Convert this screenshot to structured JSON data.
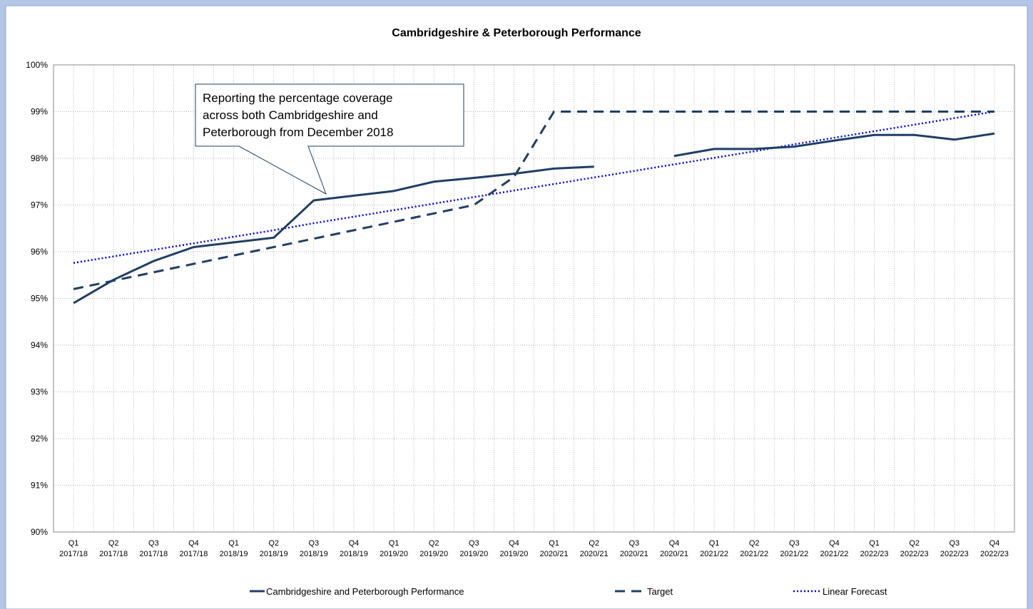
{
  "chart_data": {
    "type": "line",
    "title": "Cambridgeshire & Peterborough Performance",
    "categories": [
      [
        "Q1",
        "2017/18"
      ],
      [
        "Q2",
        "2017/18"
      ],
      [
        "Q3",
        "2017/18"
      ],
      [
        "Q4",
        "2017/18"
      ],
      [
        "Q1",
        "2018/19"
      ],
      [
        "Q2",
        "2018/19"
      ],
      [
        "Q3",
        "2018/19"
      ],
      [
        "Q4",
        "2018/19"
      ],
      [
        "Q1",
        "2019/20"
      ],
      [
        "Q2",
        "2019/20"
      ],
      [
        "Q3",
        "2019/20"
      ],
      [
        "Q4",
        "2019/20"
      ],
      [
        "Q1",
        "2020/21"
      ],
      [
        "Q2",
        "2020/21"
      ],
      [
        "Q3",
        "2020/21"
      ],
      [
        "Q4",
        "2020/21"
      ],
      [
        "Q1",
        "2021/22"
      ],
      [
        "Q2",
        "2021/22"
      ],
      [
        "Q3",
        "2021/22"
      ],
      [
        "Q4",
        "2021/22"
      ],
      [
        "Q1",
        "2022/23"
      ],
      [
        "Q2",
        "2022/23"
      ],
      [
        "Q3",
        "2022/23"
      ],
      [
        "Q4",
        "2022/23"
      ]
    ],
    "series": [
      {
        "name": "Cambridgeshire and Peterborough Performance",
        "color": "#1f3f66",
        "style": "solid",
        "values": [
          94.9,
          95.4,
          95.8,
          96.1,
          96.2,
          96.3,
          97.1,
          97.2,
          97.3,
          97.5,
          97.58,
          97.67,
          97.78,
          97.82,
          null,
          98.05,
          98.2,
          98.2,
          98.25,
          98.38,
          98.5,
          98.5,
          98.4,
          98.53
        ]
      },
      {
        "name": "Target",
        "color": "#1f3f66",
        "style": "dashed",
        "values": [
          95.2,
          95.38,
          95.56,
          95.74,
          95.92,
          96.1,
          96.28,
          96.46,
          96.64,
          96.82,
          97.0,
          97.6,
          99,
          99,
          99,
          99,
          99,
          99,
          99,
          99,
          99,
          99,
          99,
          99
        ]
      },
      {
        "name": "Linear Forecast",
        "color": "#0000ff",
        "style": "dotted",
        "values": [
          95.76,
          95.9,
          96.04,
          96.18,
          96.32,
          96.46,
          96.61,
          96.75,
          96.89,
          97.03,
          97.17,
          97.31,
          97.45,
          97.59,
          97.73,
          97.87,
          98.01,
          98.15,
          98.3,
          98.44,
          98.58,
          98.72,
          98.86,
          99.0
        ]
      }
    ],
    "annotation": [
      "Reporting the percentage coverage",
      "across both Cambridgeshire and",
      "Peterborough from December 2018"
    ],
    "ylim": [
      90,
      100
    ],
    "yticks": [
      {
        "value": 90,
        "label": "90%"
      },
      {
        "value": 91,
        "label": "91%"
      },
      {
        "value": 92,
        "label": "92%"
      },
      {
        "value": 93,
        "label": "93%"
      },
      {
        "value": 94,
        "label": "94%"
      },
      {
        "value": 95,
        "label": "95%"
      },
      {
        "value": 96,
        "label": "96%"
      },
      {
        "value": 97,
        "label": "97%"
      },
      {
        "value": 98,
        "label": "98%"
      },
      {
        "value": 99,
        "label": "99%"
      },
      {
        "value": 100,
        "label": "100%"
      }
    ],
    "grid": true,
    "legend": "bottom"
  }
}
